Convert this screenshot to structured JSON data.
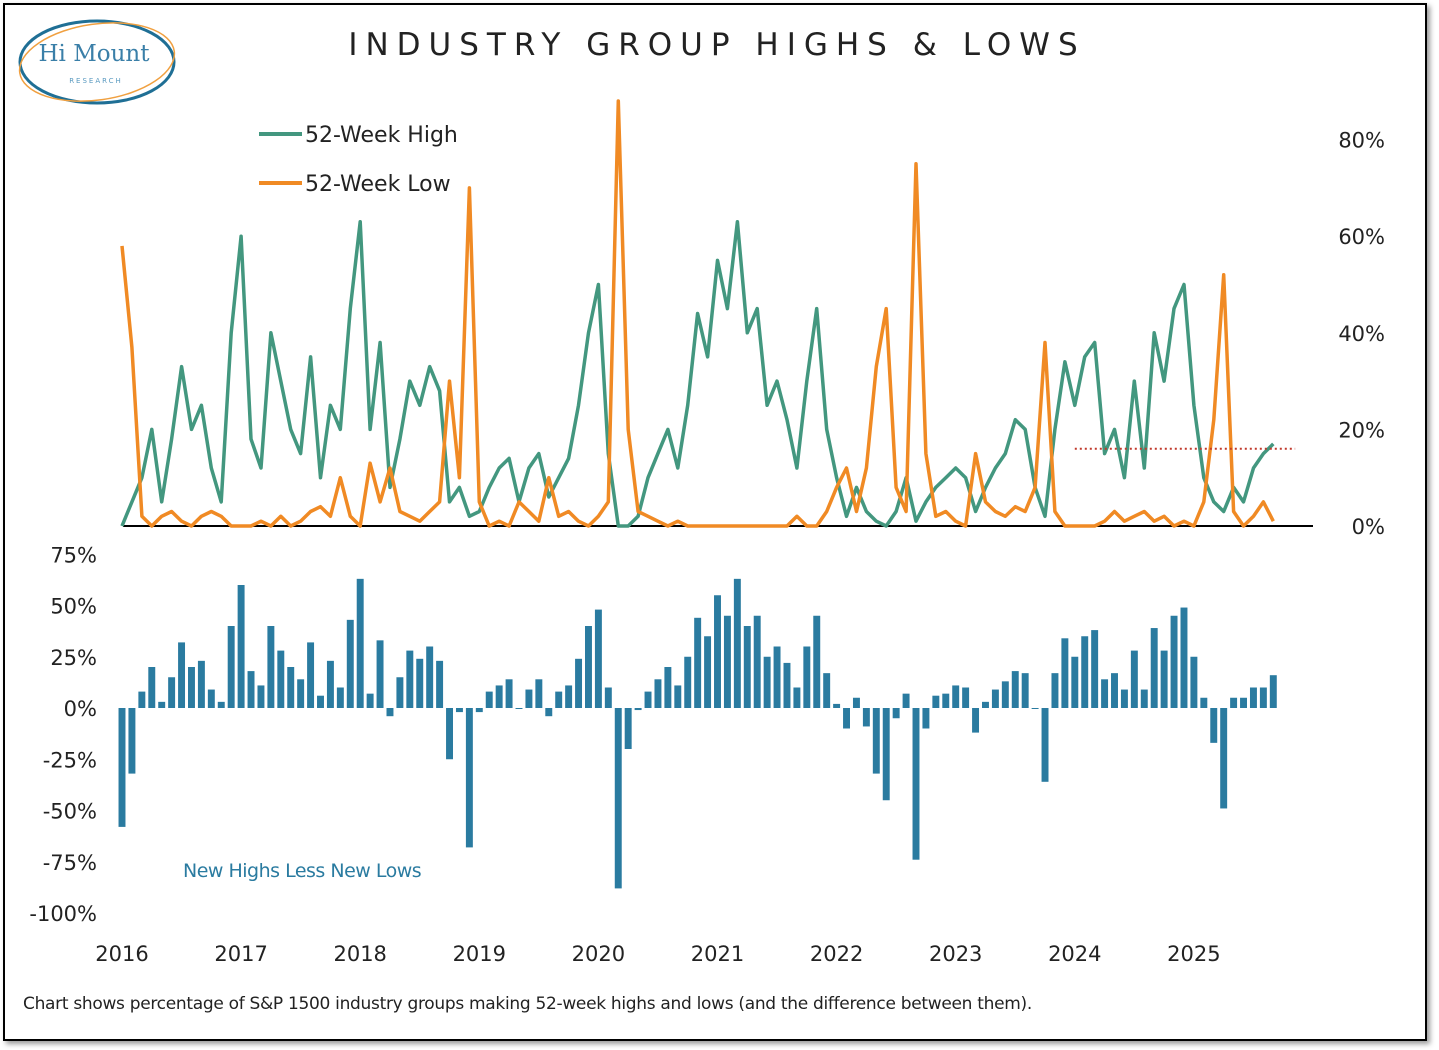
{
  "logo": {
    "name": "Hi Mount",
    "sub": "RESEARCH"
  },
  "chart_data": [
    {
      "type": "line",
      "title": "INDUSTRY GROUP HIGHS & LOWS",
      "x_start": 2016.0,
      "x_step": "monthly",
      "ylim": [
        0,
        80
      ],
      "yticks": [
        "0%",
        "20%",
        "40%",
        "60%",
        "80%"
      ],
      "ytick_values": [
        0,
        20,
        40,
        60,
        80
      ],
      "reference_line": {
        "value": 16,
        "x_from": 2024.0,
        "x_to": 2025.85,
        "color": "#c0392b"
      },
      "series": [
        {
          "name": "52-Week High",
          "color": "#43977f",
          "values": [
            0,
            5,
            10,
            20,
            5,
            18,
            33,
            20,
            25,
            12,
            5,
            40,
            60,
            18,
            12,
            40,
            30,
            20,
            15,
            35,
            10,
            25,
            20,
            45,
            63,
            20,
            38,
            8,
            18,
            30,
            25,
            33,
            28,
            5,
            8,
            2,
            3,
            8,
            12,
            14,
            5,
            12,
            15,
            6,
            10,
            14,
            25,
            40,
            50,
            15,
            0,
            0,
            2,
            10,
            15,
            20,
            12,
            25,
            44,
            35,
            55,
            45,
            63,
            40,
            45,
            25,
            30,
            22,
            12,
            30,
            45,
            20,
            10,
            2,
            8,
            3,
            1,
            0,
            3,
            10,
            1,
            5,
            8,
            10,
            12,
            10,
            3,
            8,
            12,
            15,
            22,
            20,
            8,
            2,
            20,
            34,
            25,
            35,
            38,
            15,
            20,
            10,
            30,
            12,
            40,
            30,
            45,
            50,
            25,
            10,
            5,
            3,
            8,
            5,
            12,
            15,
            17
          ]
        },
        {
          "name": "52-Week Low",
          "color": "#f08a24",
          "values": [
            58,
            37,
            2,
            0,
            2,
            3,
            1,
            0,
            2,
            3,
            2,
            0,
            0,
            0,
            1,
            0,
            2,
            0,
            1,
            3,
            4,
            2,
            10,
            2,
            0,
            13,
            5,
            12,
            3,
            2,
            1,
            3,
            5,
            30,
            10,
            70,
            5,
            0,
            1,
            0,
            5,
            3,
            1,
            10,
            2,
            3,
            1,
            0,
            2,
            5,
            88,
            20,
            3,
            2,
            1,
            0,
            1,
            0,
            0,
            0,
            0,
            0,
            0,
            0,
            0,
            0,
            0,
            0,
            2,
            0,
            0,
            3,
            8,
            12,
            3,
            12,
            33,
            45,
            8,
            3,
            75,
            15,
            2,
            3,
            1,
            0,
            15,
            5,
            3,
            2,
            4,
            3,
            8,
            38,
            3,
            0,
            0,
            0,
            0,
            1,
            3,
            1,
            2,
            3,
            1,
            2,
            0,
            1,
            0,
            5,
            22,
            52,
            3,
            0,
            2,
            5,
            1
          ]
        }
      ]
    },
    {
      "type": "bar",
      "derived": "52-Week High minus 52-Week Low",
      "annotation": "New Highs Less New Lows",
      "ylim": [
        -100,
        75
      ],
      "yticks": [
        "75%",
        "50%",
        "25%",
        "0%",
        "-25%",
        "-50%",
        "-75%",
        "-100%"
      ],
      "ytick_values": [
        75,
        50,
        25,
        0,
        -25,
        -50,
        -75,
        -100
      ],
      "color": "#2a7ba0"
    }
  ],
  "x_axis": {
    "ticks": [
      "2016",
      "2017",
      "2018",
      "2019",
      "2020",
      "2021",
      "2022",
      "2023",
      "2024",
      "2025"
    ],
    "tick_values": [
      2016,
      2017,
      2018,
      2019,
      2020,
      2021,
      2022,
      2023,
      2024,
      2025
    ]
  },
  "footnote": "Chart shows percentage of S&P 1500 industry groups making 52-week highs and lows (and the difference between them)."
}
